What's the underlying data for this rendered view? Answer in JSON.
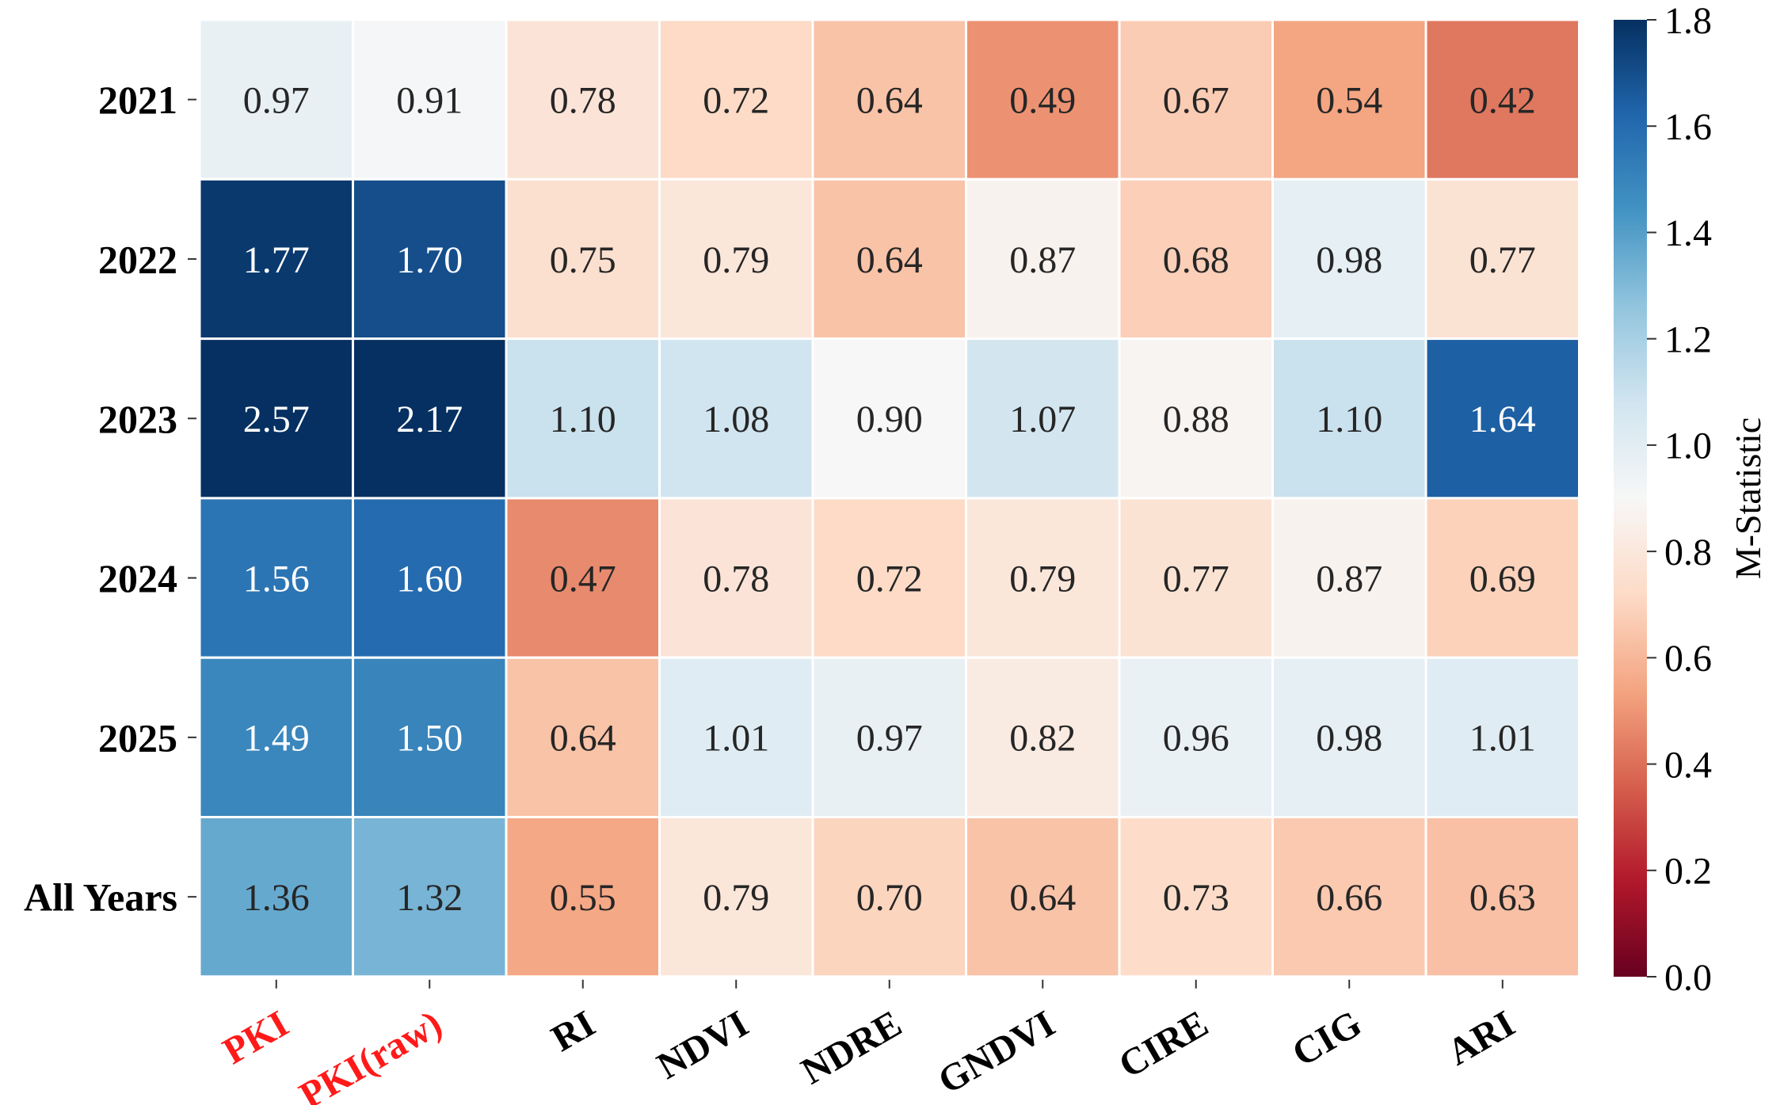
{
  "chart_data": {
    "type": "heatmap",
    "rows": [
      "2021",
      "2022",
      "2023",
      "2024",
      "2025",
      "All Years"
    ],
    "columns": [
      "PKI",
      "PKI(raw)",
      "RI",
      "NDVI",
      "NDRE",
      "GNDVI",
      "CIRE",
      "CIG",
      "ARI"
    ],
    "highlighted_columns": [
      "PKI",
      "PKI(raw)"
    ],
    "highlight_color": "#ff1a1a",
    "values": [
      [
        0.97,
        0.91,
        0.78,
        0.72,
        0.64,
        0.49,
        0.67,
        0.54,
        0.42
      ],
      [
        1.77,
        1.7,
        0.75,
        0.79,
        0.64,
        0.87,
        0.68,
        0.98,
        0.77
      ],
      [
        2.57,
        2.17,
        1.1,
        1.08,
        0.9,
        1.07,
        0.88,
        1.1,
        1.64
      ],
      [
        1.56,
        1.6,
        0.47,
        0.78,
        0.72,
        0.79,
        0.77,
        0.87,
        0.69
      ],
      [
        1.49,
        1.5,
        0.64,
        1.01,
        0.97,
        0.82,
        0.96,
        0.98,
        1.01
      ],
      [
        1.36,
        1.32,
        0.55,
        0.79,
        0.7,
        0.64,
        0.73,
        0.66,
        0.63
      ]
    ],
    "value_labels": [
      [
        "0.97",
        "0.91",
        "0.78",
        "0.72",
        "0.64",
        "0.49",
        "0.67",
        "0.54",
        "0.42"
      ],
      [
        "1.77",
        "1.70",
        "0.75",
        "0.79",
        "0.64",
        "0.87",
        "0.68",
        "0.98",
        "0.77"
      ],
      [
        "2.57",
        "2.17",
        "1.10",
        "1.08",
        "0.90",
        "1.07",
        "0.88",
        "1.10",
        "1.64"
      ],
      [
        "1.56",
        "1.60",
        "0.47",
        "0.78",
        "0.72",
        "0.79",
        "0.77",
        "0.87",
        "0.69"
      ],
      [
        "1.49",
        "1.50",
        "0.64",
        "1.01",
        "0.97",
        "0.82",
        "0.96",
        "0.98",
        "1.01"
      ],
      [
        "1.36",
        "1.32",
        "0.55",
        "0.79",
        "0.70",
        "0.64",
        "0.73",
        "0.66",
        "0.63"
      ]
    ],
    "colorbar": {
      "label": "M-Statistic",
      "range": [
        0.0,
        1.8
      ],
      "ticks": [
        0.0,
        0.2,
        0.4,
        0.6,
        0.8,
        1.0,
        1.2,
        1.4,
        1.6,
        1.8
      ],
      "tick_labels": [
        "0.0",
        "0.2",
        "0.4",
        "0.6",
        "0.8",
        "1.0",
        "1.2",
        "1.4",
        "1.6",
        "1.8"
      ],
      "colormap": "RdBu",
      "colormap_stops": [
        "#67001f",
        "#b2182b",
        "#d6604d",
        "#f4a582",
        "#fddbc7",
        "#f7f7f7",
        "#d1e5f0",
        "#92c5de",
        "#4393c3",
        "#2166ac",
        "#053061"
      ]
    },
    "grid": false,
    "legend": "colorbar-right"
  }
}
